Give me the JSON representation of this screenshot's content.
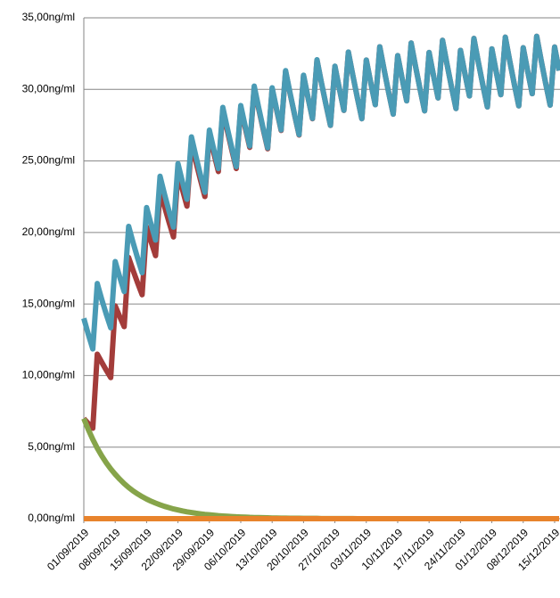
{
  "chart_data": {
    "type": "line",
    "categories": [
      "01/09/2019",
      null,
      null,
      null,
      null,
      null,
      null,
      "08/09/2019",
      null,
      null,
      null,
      null,
      null,
      null,
      "15/09/2019",
      null,
      null,
      null,
      null,
      null,
      null,
      "22/09/2019",
      null,
      null,
      null,
      null,
      null,
      null,
      "29/09/2019",
      null,
      null,
      null,
      null,
      null,
      null,
      "06/10/2019",
      null,
      null,
      null,
      null,
      null,
      null,
      "13/10/2019",
      null,
      null,
      null,
      null,
      null,
      null,
      "20/10/2019",
      null,
      null,
      null,
      null,
      null,
      null,
      "27/10/2019",
      null,
      null,
      null,
      null,
      null,
      null,
      "03/11/2019",
      null,
      null,
      null,
      null,
      null,
      null,
      "10/11/2019",
      null,
      null,
      null,
      null,
      null,
      null,
      "17/11/2019",
      null,
      null,
      null,
      null,
      null,
      null,
      "24/11/2019",
      null,
      null,
      null,
      null,
      null,
      null,
      "01/12/2019",
      null,
      null,
      null,
      null,
      null,
      null,
      "08/12/2019",
      null,
      null,
      null,
      null,
      null,
      null,
      "15/12/2019",
      null
    ],
    "series": [
      {
        "color": "#a33c3a",
        "values": [
          7.0,
          6.65,
          6.32,
          11.5,
          10.93,
          10.38,
          9.86,
          14.87,
          14.13,
          13.42,
          18.25,
          17.34,
          16.47,
          15.65,
          20.37,
          19.35,
          18.38,
          22.96,
          21.81,
          20.72,
          19.69,
          24.2,
          22.99,
          21.84,
          26.25,
          24.94,
          23.69,
          22.51,
          26.88,
          25.54,
          24.26,
          28.55,
          27.12,
          25.76,
          24.47,
          28.75,
          27.31,
          25.95,
          30.15,
          28.64,
          27.21,
          25.85,
          30.06,
          28.56,
          27.13,
          31.27,
          29.71,
          28.22,
          26.81,
          30.97,
          29.42,
          27.95,
          32.05,
          30.45,
          28.93,
          27.48,
          31.61,
          30.03,
          28.53,
          32.6,
          30.97,
          29.42,
          27.95,
          32.05,
          30.45,
          28.93,
          32.98,
          31.33,
          29.76,
          28.27,
          32.36,
          30.74,
          29.2,
          33.24,
          31.58,
          30.0,
          28.5,
          32.58,
          30.95,
          29.4,
          33.43,
          31.76,
          30.17,
          28.66,
          32.73,
          31.09,
          29.54,
          33.56,
          31.88,
          30.29,
          28.77,
          32.83,
          31.19,
          29.63,
          33.65,
          31.97,
          30.37,
          28.85,
          32.91,
          31.26,
          29.7,
          33.71,
          32.02,
          30.42,
          28.9,
          32.96,
          31.31
        ]
      },
      {
        "color": "#4a9bb5",
        "values": [
          14.0,
          12.88,
          11.86,
          16.43,
          15.32,
          14.29,
          13.34,
          17.97,
          16.89,
          15.87,
          20.43,
          19.28,
          18.2,
          17.19,
          21.74,
          20.57,
          19.47,
          23.93,
          22.67,
          21.49,
          20.37,
          24.81,
          23.53,
          22.32,
          26.68,
          25.32,
          24.03,
          22.81,
          27.15,
          25.78,
          24.47,
          28.74,
          27.29,
          25.91,
          24.6,
          28.87,
          27.42,
          26.04,
          30.23,
          28.72,
          27.28,
          25.91,
          30.11,
          28.61,
          27.17,
          31.31,
          29.74,
          28.25,
          26.84,
          30.99,
          29.44,
          27.97,
          32.07,
          30.46,
          28.94,
          27.49,
          31.62,
          30.04,
          28.54,
          32.61,
          30.98,
          29.42,
          27.95,
          32.05,
          30.45,
          28.93,
          32.98,
          31.33,
          29.76,
          28.27,
          32.36,
          30.74,
          29.2,
          33.24,
          31.58,
          30.0,
          28.5,
          32.58,
          30.95,
          29.4,
          33.43,
          31.76,
          30.17,
          28.66,
          32.73,
          31.09,
          29.54,
          33.56,
          31.88,
          30.29,
          28.77,
          32.83,
          31.19,
          29.63,
          33.65,
          31.97,
          30.37,
          28.85,
          32.91,
          31.26,
          29.7,
          33.71,
          32.02,
          30.42,
          28.9,
          32.96,
          31.31
        ]
      },
      {
        "color": "#86a44a",
        "values": [
          7.0,
          6.23,
          5.54,
          4.93,
          4.39,
          3.91,
          3.48,
          3.1,
          2.76,
          2.45,
          2.18,
          1.94,
          1.73,
          1.54,
          1.37,
          1.22,
          1.09,
          0.97,
          0.86,
          0.77,
          0.68,
          0.61,
          0.54,
          0.48,
          0.43,
          0.38,
          0.34,
          0.3,
          0.27,
          0.24,
          0.21,
          0.19,
          0.17,
          0.15,
          0.13,
          0.12,
          0.11,
          0.09,
          0.08,
          0.08,
          0.07,
          0.06,
          0.05,
          0.05,
          0.04,
          0.04,
          0.03,
          0.03,
          0.03,
          0.02,
          0.02,
          0.02,
          0.02,
          0.01,
          0.01,
          0.01,
          0.01,
          0.01,
          0.01,
          0.01,
          0.01,
          0,
          0,
          0,
          0,
          0,
          0,
          0,
          0,
          0,
          0,
          0,
          0,
          0,
          0,
          0,
          0,
          0,
          0,
          0,
          0,
          0,
          0,
          0,
          0,
          0,
          0,
          0,
          0,
          0,
          0,
          0,
          0,
          0,
          0,
          0,
          0,
          0,
          0,
          0,
          0,
          0,
          0,
          0,
          0,
          0,
          0
        ]
      },
      {
        "color": "#e8832c",
        "values": [
          0,
          0,
          0,
          0,
          0,
          0,
          0,
          0,
          0,
          0,
          0,
          0,
          0,
          0,
          0,
          0,
          0,
          0,
          0,
          0,
          0,
          0,
          0,
          0,
          0,
          0,
          0,
          0,
          0,
          0,
          0,
          0,
          0,
          0,
          0,
          0,
          0,
          0,
          0,
          0,
          0,
          0,
          0,
          0,
          0,
          0,
          0,
          0,
          0,
          0,
          0,
          0,
          0,
          0,
          0,
          0,
          0,
          0,
          0,
          0,
          0,
          0,
          0,
          0,
          0,
          0,
          0,
          0,
          0,
          0,
          0,
          0,
          0,
          0,
          0,
          0,
          0,
          0,
          0,
          0,
          0,
          0,
          0,
          0,
          0,
          0,
          0,
          0,
          0,
          0,
          0,
          0,
          0,
          0,
          0,
          0,
          0,
          0,
          0,
          0,
          0,
          0,
          0,
          0,
          0,
          0,
          0
        ]
      }
    ],
    "ylim": [
      0,
      35
    ],
    "yticks": [
      {
        "value": 0,
        "label": "0,00ng/ml"
      },
      {
        "value": 5,
        "label": "5,00ng/ml"
      },
      {
        "value": 10,
        "label": "10,00ng/ml"
      },
      {
        "value": 15,
        "label": "15,00ng/ml"
      },
      {
        "value": 20,
        "label": "20,00ng/ml"
      },
      {
        "value": 25,
        "label": "25,00ng/ml"
      },
      {
        "value": 30,
        "label": "30,00ng/ml"
      },
      {
        "value": 35,
        "label": "35,00ng/ml"
      }
    ],
    "grid": true
  }
}
